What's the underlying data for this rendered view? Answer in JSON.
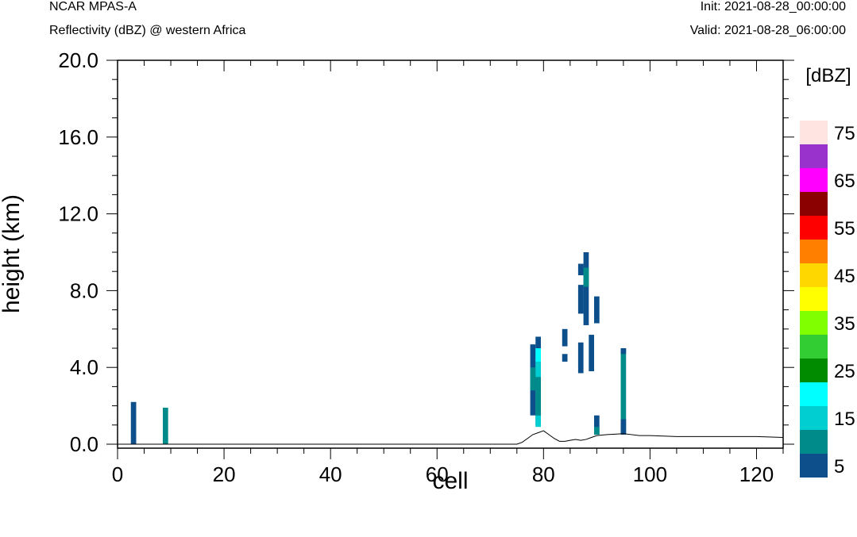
{
  "header": {
    "model": "NCAR MPAS-A",
    "field": "Reflectivity (dBZ) @ western Africa",
    "init": "Init: 2021-08-28_00:00:00",
    "valid": "Valid: 2021-08-28_06:00:00"
  },
  "chart_data": {
    "type": "heatmap",
    "title": "",
    "xlabel": "cell",
    "ylabel": "height (km)",
    "xlim": [
      0,
      125
    ],
    "ylim": [
      0,
      20
    ],
    "x_ticks": [
      0,
      20,
      40,
      60,
      80,
      100,
      120
    ],
    "y_ticks": [
      0,
      4,
      8,
      12,
      16,
      20
    ],
    "y_tick_labels": [
      "0.0",
      "4.0",
      "8.0",
      "12.0",
      "16.0",
      "20.0"
    ],
    "colorbar": {
      "unit_label": "[dBZ]",
      "levels": [
        5,
        10,
        15,
        20,
        25,
        30,
        35,
        40,
        45,
        50,
        55,
        60,
        65,
        70,
        75
      ],
      "colors": [
        "#0d4f8b",
        "#008b8b",
        "#00ced1",
        "#00ffff",
        "#008b00",
        "#32cd32",
        "#7fff00",
        "#ffff00",
        "#ffd700",
        "#ff7f00",
        "#ff0000",
        "#8b0000",
        "#ff00ff",
        "#9932cc",
        "#ffe4e1"
      ],
      "tick_labels": [
        "5",
        "15",
        "25",
        "35",
        "45",
        "55",
        "65",
        "75"
      ]
    },
    "cells": [
      {
        "x": 3,
        "ymin": 0,
        "ymax": 2.2,
        "dbz": 5
      },
      {
        "x": 9,
        "ymin": 0,
        "ymax": 1.9,
        "dbz": 10
      },
      {
        "x": 78,
        "ymin": 1.5,
        "ymax": 5.2,
        "dbz": 5
      },
      {
        "x": 78,
        "ymin": 2.8,
        "ymax": 4.0,
        "dbz": 10
      },
      {
        "x": 79,
        "ymin": 1.0,
        "ymax": 5.6,
        "dbz": 5
      },
      {
        "x": 79,
        "ymin": 0.9,
        "ymax": 1.5,
        "dbz": 15
      },
      {
        "x": 79,
        "ymin": 1.5,
        "ymax": 3.5,
        "dbz": 10
      },
      {
        "x": 79,
        "ymin": 3.5,
        "ymax": 4.3,
        "dbz": 15
      },
      {
        "x": 79,
        "ymin": 4.3,
        "ymax": 5.0,
        "dbz": 20
      },
      {
        "x": 84,
        "ymin": 5.1,
        "ymax": 6.0,
        "dbz": 5
      },
      {
        "x": 84,
        "ymin": 4.3,
        "ymax": 4.7,
        "dbz": 5
      },
      {
        "x": 87,
        "ymin": 3.7,
        "ymax": 5.3,
        "dbz": 5
      },
      {
        "x": 87,
        "ymin": 6.8,
        "ymax": 8.3,
        "dbz": 5
      },
      {
        "x": 87,
        "ymin": 8.8,
        "ymax": 9.4,
        "dbz": 5
      },
      {
        "x": 88,
        "ymin": 6.2,
        "ymax": 10.0,
        "dbz": 5
      },
      {
        "x": 88,
        "ymin": 8.2,
        "ymax": 9.2,
        "dbz": 10
      },
      {
        "x": 89,
        "ymin": 3.8,
        "ymax": 5.7,
        "dbz": 5
      },
      {
        "x": 90,
        "ymin": 6.3,
        "ymax": 7.7,
        "dbz": 5
      },
      {
        "x": 90,
        "ymin": 0.5,
        "ymax": 1.5,
        "dbz": 5
      },
      {
        "x": 90,
        "ymin": 0.5,
        "ymax": 0.9,
        "dbz": 10
      },
      {
        "x": 95,
        "ymin": 0.5,
        "ymax": 5.0,
        "dbz": 10
      },
      {
        "x": 95,
        "ymin": 0.5,
        "ymax": 1.3,
        "dbz": 5
      },
      {
        "x": 95,
        "ymin": 4.7,
        "ymax": 5.0,
        "dbz": 5
      }
    ],
    "terrain": {
      "x": [
        0,
        75,
        76,
        77,
        78,
        79,
        80,
        81,
        82,
        83,
        84,
        85,
        86,
        87,
        88,
        89,
        90,
        92,
        95,
        98,
        100,
        105,
        110,
        115,
        120,
        125
      ],
      "y": [
        0.0,
        0.0,
        0.1,
        0.3,
        0.5,
        0.6,
        0.7,
        0.5,
        0.3,
        0.15,
        0.15,
        0.2,
        0.25,
        0.2,
        0.25,
        0.35,
        0.45,
        0.5,
        0.55,
        0.45,
        0.45,
        0.4,
        0.4,
        0.4,
        0.4,
        0.35
      ]
    }
  }
}
